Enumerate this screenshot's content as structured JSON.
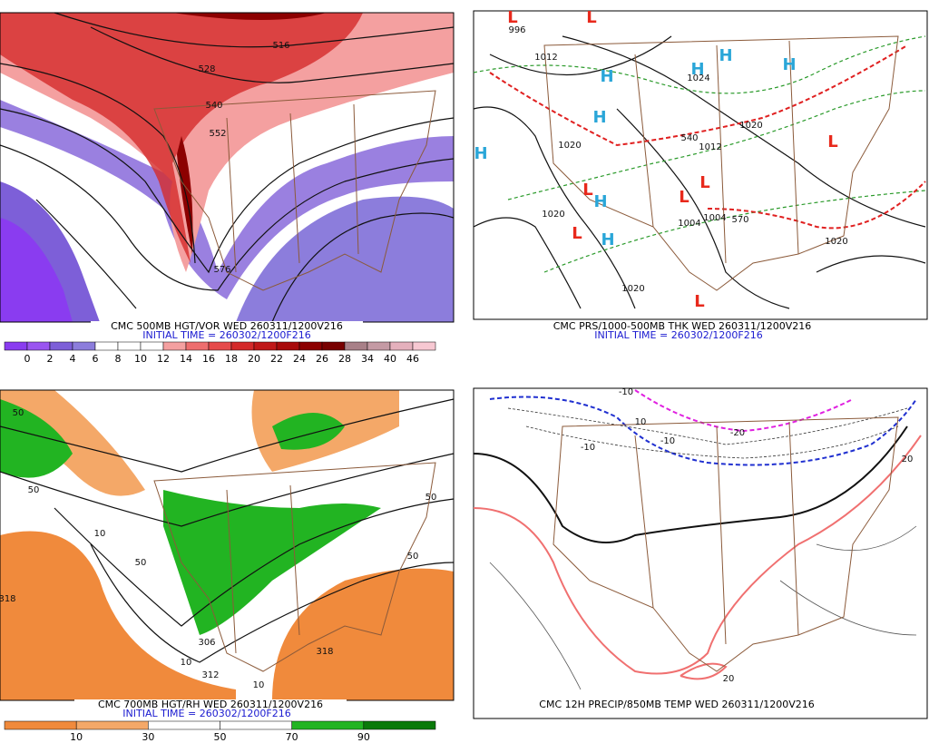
{
  "panels": [
    {
      "caption": "CMC 500MB HGT/VOR WED 260311/1200V216",
      "initial_time": "INITIAL TIME = 260302/1200F216",
      "colorbar": {
        "labels": [
          0,
          2,
          4,
          6,
          8,
          10,
          12,
          14,
          16,
          18,
          20,
          22,
          24,
          26,
          28,
          34,
          40,
          46
        ],
        "colors": [
          "#8a3cf0",
          "#9a55f0",
          "#7d5fd8",
          "#8c7ddc",
          "#ffffff",
          "#ffffff",
          "#ffffff",
          "#f4a0a0",
          "#ee6e6e",
          "#e64a4a",
          "#d42a2a",
          "#c01818",
          "#a80a0a",
          "#8c0000",
          "#780000",
          "#a88088",
          "#c49aa4",
          "#e4b0bc",
          "#f7c8d2"
        ]
      },
      "contour_labels": [
        "516",
        "528",
        "540",
        "552",
        "576"
      ]
    },
    {
      "caption": "CMC PRS/1000-500MB THK WED 260311/1200V216",
      "initial_time": "INITIAL TIME = 260302/1200F216",
      "symbols": [
        {
          "text": "L",
          "color": "#e8291c"
        },
        {
          "text": "L",
          "color": "#e8291c"
        },
        {
          "text": "L",
          "color": "#e8291c"
        },
        {
          "text": "L",
          "color": "#e8291c"
        },
        {
          "text": "L",
          "color": "#e8291c"
        },
        {
          "text": "L",
          "color": "#e8291c"
        },
        {
          "text": "L",
          "color": "#e8291c"
        },
        {
          "text": "L",
          "color": "#e8291c"
        },
        {
          "text": "H",
          "color": "#2aa6d8"
        },
        {
          "text": "H",
          "color": "#2aa6d8"
        },
        {
          "text": "H",
          "color": "#2aa6d8"
        },
        {
          "text": "H",
          "color": "#2aa6d8"
        },
        {
          "text": "H",
          "color": "#2aa6d8"
        },
        {
          "text": "H",
          "color": "#2aa6d8"
        },
        {
          "text": "H",
          "color": "#2aa6d8"
        },
        {
          "text": "H",
          "color": "#2aa6d8"
        }
      ],
      "contour_labels": [
        "996",
        "1012",
        "1020",
        "1020",
        "1020",
        "1024",
        "1004",
        "1004",
        "570",
        "1020",
        "1020",
        "540",
        "1012"
      ]
    },
    {
      "caption": "CMC 700MB HGT/RH WED 260311/1200V216",
      "initial_time": "INITIAL TIME = 260302/1200F216",
      "colorbar": {
        "labels": [
          10,
          30,
          50,
          70,
          90
        ],
        "colors": [
          "#f08a3c",
          "#f4a868",
          "#ffffff",
          "#ffffff",
          "#22b422",
          "#0a7a0a"
        ]
      },
      "contour_labels": [
        "50",
        "50",
        "50",
        "50",
        "50",
        "10",
        "10",
        "318",
        "318",
        "306",
        "312",
        "10"
      ]
    },
    {
      "caption": "CMC 12H PRECIP/850MB TEMP WED 260311/1200V216",
      "contour_labels": [
        "-10",
        "-10",
        "-10",
        "-20",
        "20",
        "20",
        "10"
      ]
    }
  ]
}
